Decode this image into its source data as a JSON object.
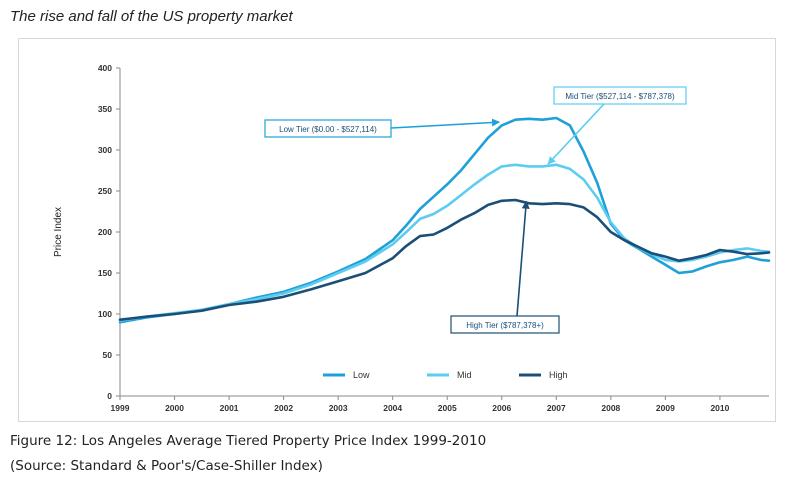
{
  "page": {
    "title": "The rise and fall of the US property market",
    "caption_line1": "Figure 12: Los Angeles Average Tiered Property Price Index 1999-2010",
    "caption_line2": "(Source: Standard & Poor's/Case-Shiller Index)"
  },
  "chart_data": {
    "type": "line",
    "title": "",
    "xlabel": "",
    "ylabel": "Price Index",
    "xlim": [
      1999,
      2010.9
    ],
    "ylim": [
      0,
      400
    ],
    "yticks": [
      0,
      50,
      100,
      150,
      200,
      250,
      300,
      350,
      400
    ],
    "xticks": [
      1999,
      2000,
      2001,
      2002,
      2003,
      2004,
      2005,
      2006,
      2007,
      2008,
      2009,
      2010
    ],
    "xtick_labels": [
      "1999",
      "2000",
      "2001",
      "2002",
      "2003",
      "2004",
      "2005",
      "2006",
      "2007",
      "2008",
      "2009",
      "2010"
    ],
    "grid": false,
    "legend": "bottom-center",
    "x": [
      1999.0,
      1999.5,
      2000.0,
      2000.5,
      2001.0,
      2001.5,
      2002.0,
      2002.5,
      2003.0,
      2003.5,
      2004.0,
      2004.25,
      2004.5,
      2004.75,
      2005.0,
      2005.25,
      2005.5,
      2005.75,
      2006.0,
      2006.25,
      2006.5,
      2006.75,
      2007.0,
      2007.25,
      2007.5,
      2007.75,
      2008.0,
      2008.25,
      2008.5,
      2008.75,
      2009.0,
      2009.25,
      2009.5,
      2009.75,
      2010.0,
      2010.25,
      2010.5,
      2010.75,
      2010.9
    ],
    "series": [
      {
        "name": "Low",
        "color": "#1fa0d8",
        "values": [
          90,
          96,
          100,
          105,
          112,
          120,
          127,
          138,
          152,
          167,
          190,
          208,
          228,
          243,
          258,
          275,
          295,
          315,
          330,
          337,
          338,
          337,
          339,
          330,
          298,
          260,
          210,
          190,
          180,
          170,
          160,
          150,
          152,
          158,
          163,
          166,
          170,
          166,
          165
        ]
      },
      {
        "name": "Mid",
        "color": "#5ccdf1",
        "values": [
          92,
          97,
          101,
          105,
          112,
          118,
          125,
          136,
          150,
          164,
          185,
          200,
          216,
          222,
          232,
          245,
          258,
          270,
          280,
          282,
          280,
          280,
          282,
          277,
          264,
          242,
          212,
          192,
          181,
          173,
          166,
          164,
          166,
          170,
          175,
          178,
          180,
          177,
          176
        ]
      },
      {
        "name": "High",
        "color": "#1b4f78",
        "values": [
          93,
          97,
          100,
          104,
          111,
          115,
          121,
          130,
          140,
          150,
          168,
          183,
          195,
          197,
          205,
          215,
          223,
          233,
          238,
          239,
          235,
          234,
          235,
          234,
          230,
          218,
          200,
          190,
          182,
          174,
          170,
          165,
          168,
          172,
          178,
          176,
          173,
          174,
          175
        ]
      }
    ],
    "annotations": [
      {
        "text": "Low Tier ($0.00 - $527,114)",
        "series": "Low",
        "point_x": 2005.95,
        "point_y": 334
      },
      {
        "text": "Mid Tier ($527,114 - $787,378)",
        "series": "Mid",
        "point_x": 2006.85,
        "point_y": 283
      },
      {
        "text": "High Tier ($787,378+)",
        "series": "High",
        "point_x": 2006.45,
        "point_y": 237
      }
    ]
  }
}
